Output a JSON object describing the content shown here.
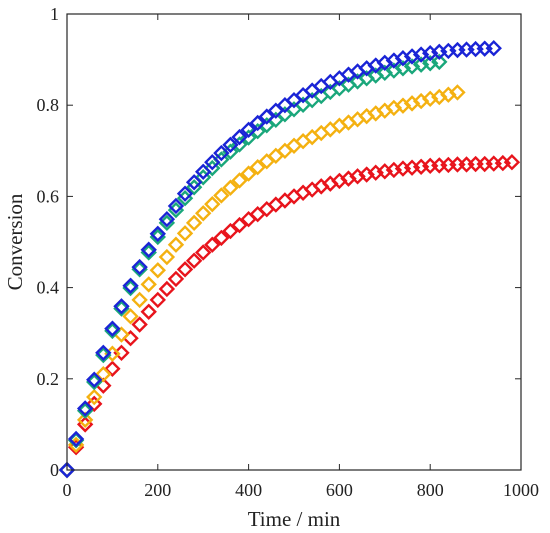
{
  "chart_data": {
    "type": "scatter",
    "title": "",
    "xlabel": "Time / min",
    "ylabel": "Conversion",
    "xlim": [
      0,
      1000
    ],
    "ylim": [
      0,
      1
    ],
    "xticks": [
      0,
      200,
      400,
      600,
      800,
      1000
    ],
    "yticks": [
      0,
      0.2,
      0.4,
      0.6,
      0.8,
      1
    ],
    "xtick_labels": [
      "0",
      "200",
      "400",
      "600",
      "800",
      "1000"
    ],
    "ytick_labels": [
      "0",
      "0.2",
      "0.4",
      "0.6",
      "0.8",
      "1"
    ],
    "grid": false,
    "marker": "diamond-open",
    "series": [
      {
        "color": "#e8141c",
        "x": [
          0,
          20,
          40,
          60,
          80,
          100,
          120,
          140,
          160,
          180,
          200,
          220,
          240,
          260,
          280,
          300,
          320,
          340,
          360,
          380,
          400,
          420,
          440,
          460,
          480,
          500,
          520,
          540,
          560,
          580,
          600,
          620,
          640,
          660,
          680,
          700,
          720,
          740,
          760,
          780,
          800,
          820,
          840,
          860,
          880,
          900,
          920,
          940,
          960,
          980
        ],
        "y": [
          0.0,
          0.05,
          0.1,
          0.145,
          0.185,
          0.222,
          0.257,
          0.289,
          0.319,
          0.347,
          0.373,
          0.397,
          0.419,
          0.44,
          0.459,
          0.477,
          0.494,
          0.509,
          0.524,
          0.537,
          0.55,
          0.561,
          0.572,
          0.582,
          0.591,
          0.6,
          0.608,
          0.615,
          0.622,
          0.628,
          0.634,
          0.639,
          0.644,
          0.648,
          0.652,
          0.655,
          0.658,
          0.661,
          0.663,
          0.665,
          0.667,
          0.668,
          0.669,
          0.67,
          0.67,
          0.671,
          0.671,
          0.672,
          0.673,
          0.675
        ]
      },
      {
        "color": "#f4b111",
        "x": [
          0,
          20,
          40,
          60,
          80,
          100,
          120,
          140,
          160,
          180,
          200,
          220,
          240,
          260,
          280,
          300,
          320,
          340,
          360,
          380,
          400,
          420,
          440,
          460,
          480,
          500,
          520,
          540,
          560,
          580,
          600,
          620,
          640,
          660,
          680,
          700,
          720,
          740,
          760,
          780,
          800,
          820,
          840,
          860
        ],
        "y": [
          0.0,
          0.055,
          0.11,
          0.16,
          0.21,
          0.255,
          0.297,
          0.337,
          0.373,
          0.407,
          0.438,
          0.467,
          0.494,
          0.519,
          0.542,
          0.563,
          0.583,
          0.602,
          0.619,
          0.635,
          0.65,
          0.664,
          0.677,
          0.689,
          0.7,
          0.711,
          0.721,
          0.73,
          0.739,
          0.747,
          0.755,
          0.762,
          0.769,
          0.776,
          0.782,
          0.788,
          0.794,
          0.799,
          0.804,
          0.809,
          0.814,
          0.818,
          0.823,
          0.828
        ]
      },
      {
        "color": "#1aa77b",
        "x": [
          0,
          20,
          40,
          60,
          80,
          100,
          120,
          140,
          160,
          180,
          200,
          220,
          240,
          260,
          280,
          300,
          320,
          340,
          360,
          380,
          400,
          420,
          440,
          460,
          480,
          500,
          520,
          540,
          560,
          580,
          600,
          620,
          640,
          660,
          680,
          700,
          720,
          740,
          760,
          780,
          800,
          820
        ],
        "y": [
          0.0,
          0.065,
          0.13,
          0.193,
          0.252,
          0.305,
          0.354,
          0.399,
          0.44,
          0.477,
          0.511,
          0.542,
          0.57,
          0.596,
          0.62,
          0.642,
          0.662,
          0.681,
          0.698,
          0.714,
          0.729,
          0.743,
          0.756,
          0.768,
          0.78,
          0.791,
          0.801,
          0.811,
          0.82,
          0.829,
          0.837,
          0.845,
          0.852,
          0.859,
          0.865,
          0.871,
          0.876,
          0.881,
          0.885,
          0.889,
          0.892,
          0.895
        ]
      },
      {
        "color": "#1a24d6",
        "x": [
          0,
          20,
          40,
          60,
          80,
          100,
          120,
          140,
          160,
          180,
          200,
          220,
          240,
          260,
          280,
          300,
          320,
          340,
          360,
          380,
          400,
          420,
          440,
          460,
          480,
          500,
          520,
          540,
          560,
          580,
          600,
          620,
          640,
          660,
          680,
          700,
          720,
          740,
          760,
          780,
          800,
          820,
          840,
          860,
          880,
          900,
          920,
          940
        ],
        "y": [
          0.0,
          0.068,
          0.135,
          0.198,
          0.257,
          0.31,
          0.359,
          0.404,
          0.445,
          0.483,
          0.518,
          0.55,
          0.579,
          0.606,
          0.631,
          0.654,
          0.675,
          0.695,
          0.713,
          0.73,
          0.746,
          0.761,
          0.775,
          0.788,
          0.8,
          0.811,
          0.822,
          0.832,
          0.842,
          0.851,
          0.859,
          0.867,
          0.874,
          0.881,
          0.887,
          0.893,
          0.898,
          0.903,
          0.907,
          0.911,
          0.914,
          0.917,
          0.919,
          0.921,
          0.922,
          0.923,
          0.924,
          0.925
        ]
      }
    ]
  }
}
